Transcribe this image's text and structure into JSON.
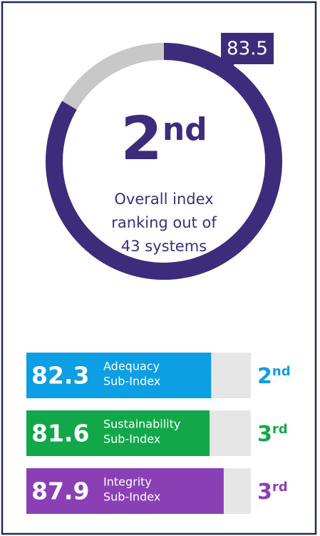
{
  "chart_data": [
    {
      "type": "donut",
      "values": [
        83.5
      ],
      "value_labels": [
        "83.5"
      ],
      "ylim": [
        0,
        100
      ],
      "color": "#3d2c7c",
      "track_color": "#c8c8c8",
      "rank": [
        "2",
        "nd"
      ],
      "caption": [
        "Overall index",
        "ranking out of",
        "43 systems"
      ]
    },
    {
      "type": "bar",
      "categories": [
        [
          "Adequacy",
          "Sub-Index"
        ],
        [
          "Sustainability",
          "Sub-Index"
        ],
        [
          "Integrity",
          "Sub-Index"
        ]
      ],
      "values": [
        82.3,
        81.6,
        87.9
      ],
      "xlim": [
        0,
        100
      ],
      "colors": [
        "#0d9fe3",
        "#12a84a",
        "#8b3fb5"
      ],
      "track_color": "#e6e6e6",
      "ranks": [
        [
          "2",
          "nd"
        ],
        [
          "3",
          "rd"
        ],
        [
          "3",
          "rd"
        ]
      ]
    }
  ]
}
